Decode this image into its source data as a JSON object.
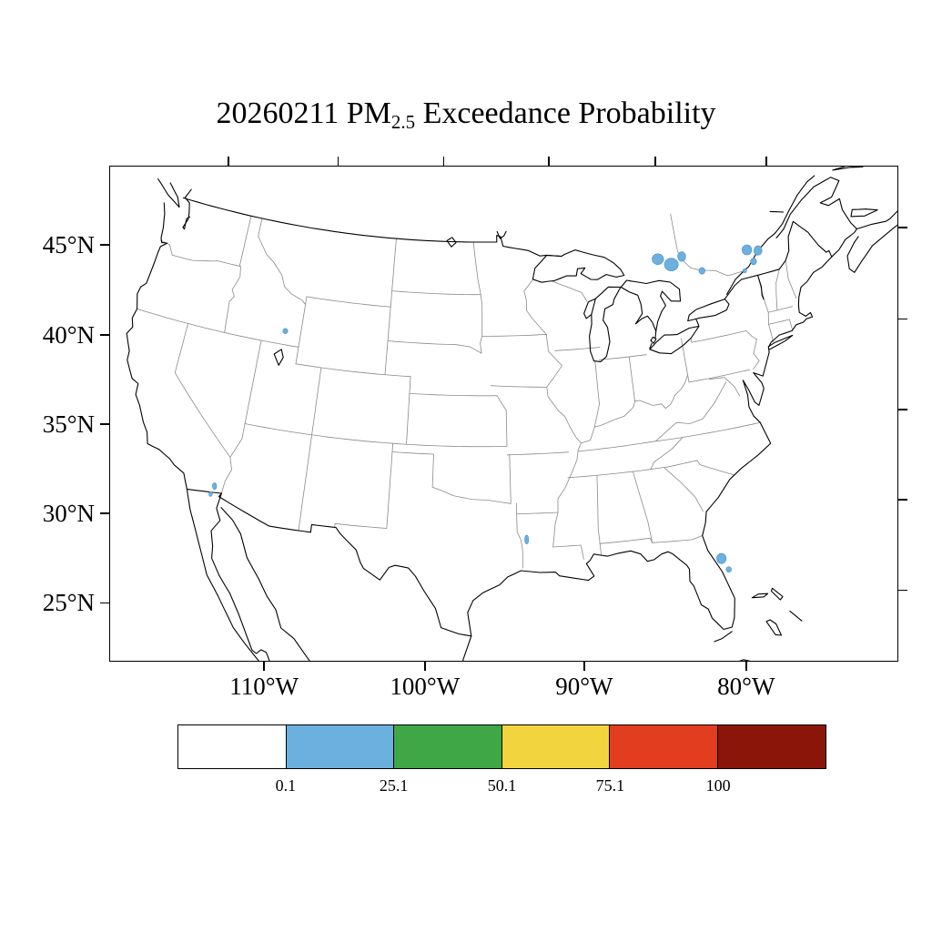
{
  "figure": {
    "title_prefix": "20260211 PM",
    "title_subscript": "2.5",
    "title_suffix": " Exceedance Probability",
    "background_color": "#ffffff"
  },
  "axes": {
    "lat_ticks": [
      {
        "deg": 45,
        "label": "45°N"
      },
      {
        "deg": 40,
        "label": "40°N"
      },
      {
        "deg": 35,
        "label": "35°N"
      },
      {
        "deg": 30,
        "label": "30°N"
      },
      {
        "deg": 25,
        "label": "25°N"
      }
    ],
    "lon_ticks": [
      {
        "deg": -110,
        "label": "110°W"
      },
      {
        "deg": -100,
        "label": "100°W"
      },
      {
        "deg": -90,
        "label": "90°W"
      },
      {
        "deg": -80,
        "label": "80°W"
      }
    ],
    "minor_lon_ticks": [
      -120,
      -70
    ]
  },
  "colorbar": {
    "colors": [
      "#ffffff",
      "#6cb0e0",
      "#40a747",
      "#f2d43e",
      "#e23d1e",
      "#8b1509"
    ],
    "boundary_labels": [
      "0.1",
      "25.1",
      "50.1",
      "75.1",
      "100"
    ]
  },
  "chart_data": {
    "type": "map",
    "title": "20260211 PM2.5 Exceedance Probability",
    "date": "20260211",
    "variable": "PM2.5 exceedance probability",
    "units": "%",
    "probability_bins": [
      {
        "min": 0,
        "max": 0.1,
        "color": "#ffffff"
      },
      {
        "min": 0.1,
        "max": 25.1,
        "color": "#6cb0e0"
      },
      {
        "min": 25.1,
        "max": 50.1,
        "color": "#40a747"
      },
      {
        "min": 50.1,
        "max": 75.1,
        "color": "#f2d43e"
      },
      {
        "min": 75.1,
        "max": 100,
        "color": "#e23d1e"
      },
      {
        "min": 100,
        "max": 100,
        "color": "#8b1509"
      }
    ],
    "exceedance_regions": [
      {
        "name": "ontario-sudbury",
        "lon": -81.3,
        "lat": 47.15,
        "rx_deg": 0.5,
        "ry_deg": 0.32,
        "bin": "0.1-25.1"
      },
      {
        "name": "ontario-north-bay",
        "lon": -80.25,
        "lat": 46.7,
        "rx_deg": 0.6,
        "ry_deg": 0.38,
        "bin": "0.1-25.1"
      },
      {
        "name": "ontario-temiskaming",
        "lon": -79.25,
        "lat": 47.05,
        "rx_deg": 0.35,
        "ry_deg": 0.28,
        "bin": "0.1-25.1"
      },
      {
        "name": "ontario-algonquin",
        "lon": -77.8,
        "lat": 46.0,
        "rx_deg": 0.26,
        "ry_deg": 0.2,
        "bin": "0.1-25.1"
      },
      {
        "name": "quebec-mauricie",
        "lon": -73.7,
        "lat": 46.6,
        "rx_deg": 0.42,
        "ry_deg": 0.3,
        "bin": "0.1-25.1"
      },
      {
        "name": "quebec-east",
        "lon": -72.8,
        "lat": 46.4,
        "rx_deg": 0.36,
        "ry_deg": 0.28,
        "bin": "0.1-25.1"
      },
      {
        "name": "quebec-lanaudiere",
        "lon": -73.4,
        "lat": 45.85,
        "rx_deg": 0.26,
        "ry_deg": 0.2,
        "bin": "0.1-25.1"
      },
      {
        "name": "quebec-montreal",
        "lon": -74.3,
        "lat": 45.45,
        "rx_deg": 0.16,
        "ry_deg": 0.13,
        "bin": "0.1-25.1"
      },
      {
        "name": "idaho-utah-border",
        "lon": -112.3,
        "lat": 42.8,
        "rx_deg": 0.2,
        "ry_deg": 0.16,
        "bin": "0.1-25.1"
      },
      {
        "name": "california-imperial-north",
        "lon": -115.3,
        "lat": 33.05,
        "rx_deg": 0.15,
        "ry_deg": 0.2,
        "bin": "0.1-25.1"
      },
      {
        "name": "california-imperial-south",
        "lon": -115.45,
        "lat": 32.55,
        "rx_deg": 0.12,
        "ry_deg": 0.14,
        "bin": "0.1-25.1"
      },
      {
        "name": "louisiana-central",
        "lon": -93.4,
        "lat": 31.5,
        "rx_deg": 0.14,
        "ry_deg": 0.26,
        "bin": "0.1-25.1"
      },
      {
        "name": "florida-cape-canaveral",
        "lon": -80.45,
        "lat": 29.2,
        "rx_deg": 0.32,
        "ry_deg": 0.3,
        "bin": "0.1-25.1"
      },
      {
        "name": "florida-treasure-coast",
        "lon": -80.1,
        "lat": 28.5,
        "rx_deg": 0.18,
        "ry_deg": 0.16,
        "bin": "0.1-25.1"
      }
    ]
  }
}
